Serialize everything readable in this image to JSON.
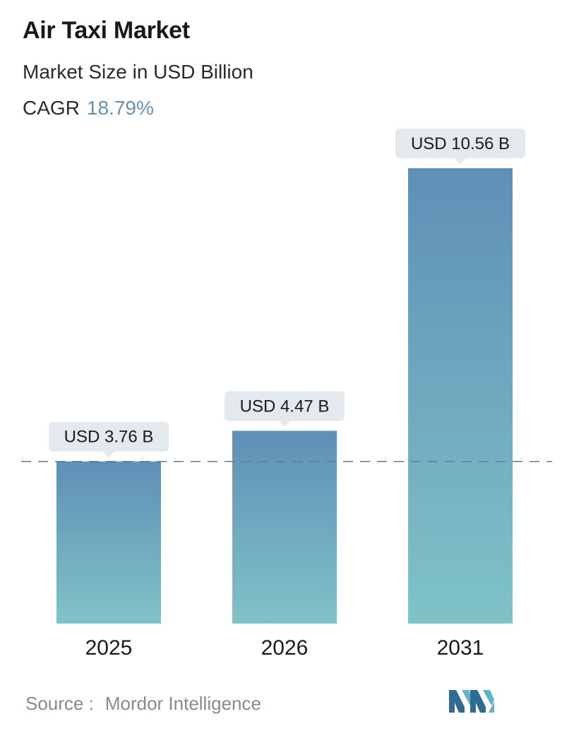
{
  "header": {
    "title": "Air Taxi Market",
    "subtitle": "Market Size in USD Billion",
    "cagr_label": "CAGR",
    "cagr_value": "18.79%"
  },
  "chart_data": {
    "type": "bar",
    "categories": [
      "2025",
      "2026",
      "2031"
    ],
    "values": [
      3.76,
      4.47,
      10.56
    ],
    "data_labels": [
      "USD 3.76 B",
      "USD 4.47 B",
      "USD 10.56 B"
    ],
    "title": "Air Taxi Market",
    "subtitle": "Market Size in USD Billion",
    "xlabel": "",
    "ylabel": "",
    "reference_line": 3.76,
    "grid": false,
    "legend": "none"
  },
  "footer": {
    "source_label": "Source :",
    "source_value": "Mordor Intelligence",
    "logo_icon": "mordor-intelligence-logo-icon"
  },
  "colors": {
    "bar_top": "#5f8fb7",
    "bar_bottom": "#7fc3c7",
    "label_bg": "#e3e9ec",
    "dashed_line": "#5a7f9c",
    "cagr_accent": "#6a8faf",
    "logo_dark": "#2f6c93",
    "logo_light": "#5fb3c7"
  }
}
